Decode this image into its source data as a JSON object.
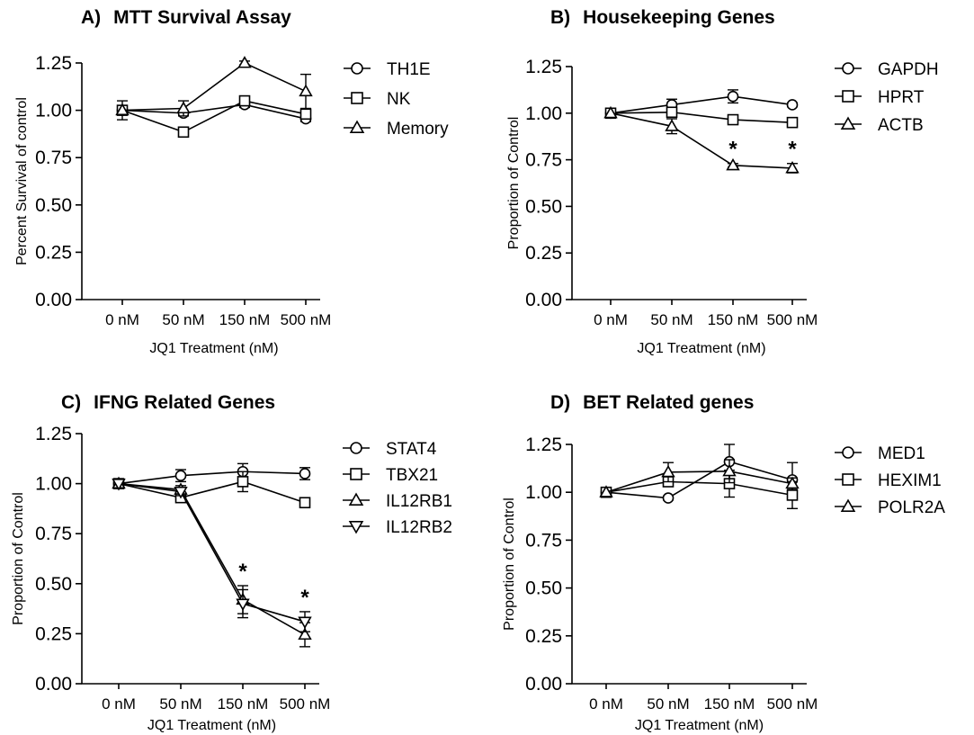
{
  "chart_data": [
    {
      "type": "line",
      "panel_label": "A)",
      "title": "MTT Survival Assay",
      "xlabel": "JQ1 Treatment (nM)",
      "ylabel": "Percent Survival of control",
      "categories": [
        "0 nM",
        "50 nM",
        "150 nM",
        "500 nM"
      ],
      "ylim": [
        0,
        1.25
      ],
      "yticks": [
        "0.00",
        "0.25",
        "0.50",
        "0.75",
        "1.00",
        "1.25"
      ],
      "series": [
        {
          "name": "TH1E",
          "marker": "circle",
          "values": [
            1.0,
            0.985,
            1.03,
            0.955
          ],
          "err": [
            0,
            0.01,
            0.015,
            0.015
          ]
        },
        {
          "name": "NK",
          "marker": "square",
          "values": [
            1.0,
            0.885,
            1.05,
            0.98
          ],
          "err": [
            0,
            0.015,
            0.015,
            0.02
          ]
        },
        {
          "name": "Memory",
          "marker": "triangle",
          "values": [
            1.0,
            1.01,
            1.25,
            1.1
          ],
          "err": [
            0.05,
            0.04,
            0.01,
            0.09
          ]
        }
      ],
      "significance": []
    },
    {
      "type": "line",
      "panel_label": "B)",
      "title": "Housekeeping Genes",
      "xlabel": "JQ1 Treatment (nM)",
      "ylabel": "Proportion of Control",
      "categories": [
        "0 nM",
        "50 nM",
        "150 nM",
        "500 nM"
      ],
      "ylim": [
        0,
        1.25
      ],
      "yticks": [
        "0.00",
        "0.25",
        "0.50",
        "0.75",
        "1.00",
        "1.25"
      ],
      "series": [
        {
          "name": "GAPDH",
          "marker": "circle",
          "values": [
            1.0,
            1.045,
            1.09,
            1.045
          ],
          "err": [
            0,
            0.03,
            0.035,
            0.01
          ]
        },
        {
          "name": "HPRT",
          "marker": "square",
          "values": [
            1.0,
            1.005,
            0.965,
            0.95
          ],
          "err": [
            0,
            0.02,
            0.01,
            0.01
          ]
        },
        {
          "name": "ACTB",
          "marker": "triangle",
          "values": [
            1.0,
            0.93,
            0.72,
            0.705
          ],
          "err": [
            0,
            0.04,
            0.01,
            0.025
          ]
        }
      ],
      "significance": [
        {
          "category_index": 2,
          "label": "*"
        },
        {
          "category_index": 3,
          "label": "*"
        }
      ]
    },
    {
      "type": "line",
      "panel_label": "C)",
      "title": "IFNG Related Genes",
      "xlabel": "JQ1 Treatment (nM)",
      "ylabel": "Proportion of Control",
      "categories": [
        "0 nM",
        "50 nM",
        "150 nM",
        "500 nM"
      ],
      "ylim": [
        0,
        1.25
      ],
      "yticks": [
        "0.00",
        "0.25",
        "0.50",
        "0.75",
        "1.00",
        "1.25"
      ],
      "series": [
        {
          "name": "STAT4",
          "marker": "circle",
          "values": [
            1.0,
            1.04,
            1.06,
            1.05
          ],
          "err": [
            0,
            0.03,
            0.04,
            0.03
          ]
        },
        {
          "name": "TBX21",
          "marker": "square",
          "values": [
            1.0,
            0.93,
            1.01,
            0.905
          ],
          "err": [
            0,
            0.015,
            0.05,
            0.015
          ]
        },
        {
          "name": "IL12RB1",
          "marker": "triangle",
          "values": [
            1.0,
            0.97,
            0.42,
            0.245
          ],
          "err": [
            0,
            0.02,
            0.07,
            0.06
          ]
        },
        {
          "name": "IL12RB2",
          "marker": "triangle-down",
          "values": [
            1.0,
            0.96,
            0.4,
            0.31
          ],
          "err": [
            0,
            0.02,
            0.07,
            0.05
          ]
        }
      ],
      "significance": [
        {
          "category_index": 2,
          "label": "*"
        },
        {
          "category_index": 3,
          "label": "*"
        }
      ]
    },
    {
      "type": "line",
      "panel_label": "D)",
      "title": "BET Related genes",
      "xlabel": "JQ1 Treatment (nM)",
      "ylabel": "Proportion of Control",
      "categories": [
        "0 nM",
        "50 nM",
        "150 nM",
        "500 nM"
      ],
      "ylim": [
        0,
        1.25
      ],
      "yticks": [
        "0.00",
        "0.25",
        "0.50",
        "0.75",
        "1.00",
        "1.25"
      ],
      "series": [
        {
          "name": "MED1",
          "marker": "circle",
          "values": [
            1.0,
            0.97,
            1.16,
            1.065
          ],
          "err": [
            0,
            0.01,
            0.09,
            0.09
          ]
        },
        {
          "name": "HEXIM1",
          "marker": "square",
          "values": [
            1.0,
            1.055,
            1.045,
            0.985
          ],
          "err": [
            0,
            0.02,
            0.07,
            0.07
          ]
        },
        {
          "name": "POLR2A",
          "marker": "triangle",
          "values": [
            1.0,
            1.105,
            1.11,
            1.045
          ],
          "err": [
            0,
            0.05,
            0.06,
            0.03
          ]
        }
      ],
      "significance": []
    }
  ]
}
